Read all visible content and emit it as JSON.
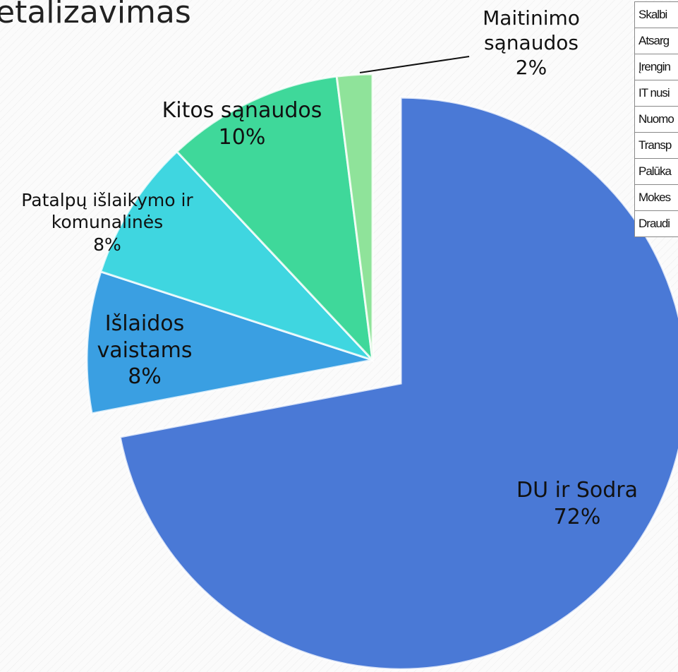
{
  "chart_data": {
    "type": "pie",
    "title": "etalizavimas",
    "categories": [
      "DU ir Sodra",
      "Išlaidos vaistams",
      "Patalpų išlaikymo ir komunalinės",
      "Kitos sąnaudos",
      "Maitinimo sąnaudos"
    ],
    "values": [
      72,
      8,
      8,
      10,
      2
    ],
    "value_labels": [
      "72%",
      "8%",
      "8%",
      "10%",
      "2%"
    ],
    "colors": [
      "#4a79d6",
      "#3a9fe2",
      "#3fd6e0",
      "#3fd89a",
      "#8fe39a"
    ]
  },
  "side_table": [
    "Skalbi",
    "Atsarg",
    "Įrengin",
    "IT nusi",
    "Nuomo",
    "Transp",
    "Palūka",
    "Mokes",
    "Draudi"
  ]
}
